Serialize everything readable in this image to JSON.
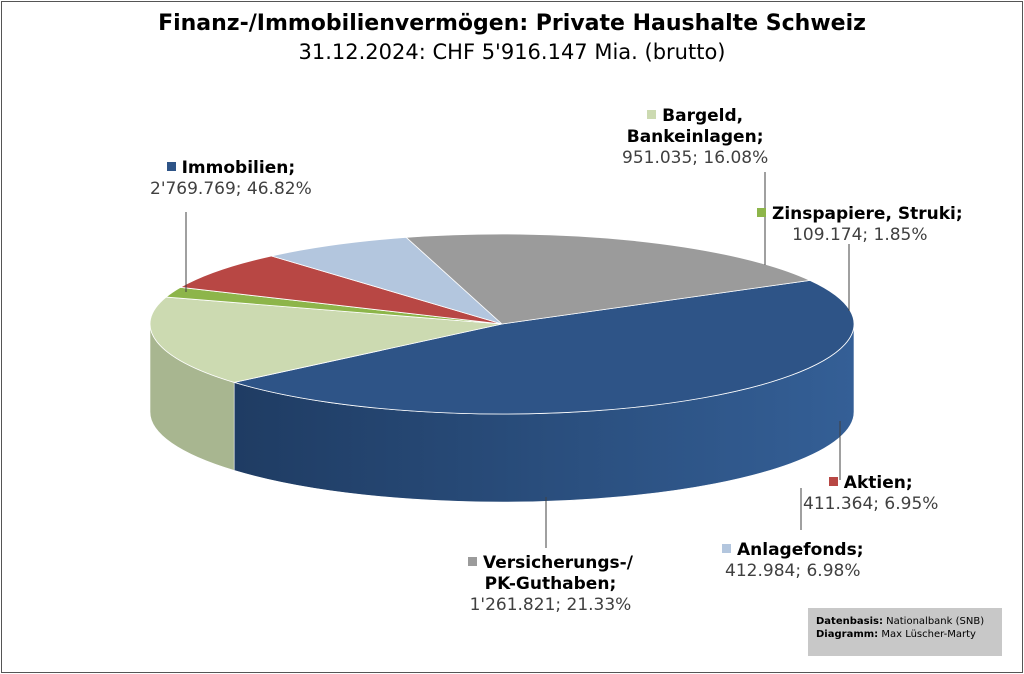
{
  "chart_data": {
    "type": "pie",
    "title": "Finanz-/Immobilienvermögen: Private Haushalte Schweiz",
    "subtitle": "31.12.2024: CHF 5'916.147 Mia. (brutto)",
    "slices": [
      {
        "name_line1": "Immobilien;",
        "name_line2": "",
        "value": 2769.769,
        "value_label": "2'769.769; 46.82%",
        "percent": 46.82,
        "color": "#2e5487",
        "side_color": "#284a78"
      },
      {
        "name_line1": "Bargeld,",
        "name_line2": "Bankeinlagen;",
        "value": 951.035,
        "value_label": "951.035; 16.08%",
        "percent": 16.08,
        "color": "#ccdab1",
        "side_color": "#a8b690"
      },
      {
        "name_line1": "Zinspapiere, Struki;",
        "name_line2": "",
        "value": 109.174,
        "value_label": "109.174; 1.85%",
        "percent": 1.85,
        "color": "#8db54a",
        "side_color": "#5f7e2c"
      },
      {
        "name_line1": "Aktien;",
        "name_line2": "",
        "value": 411.364,
        "value_label": "411.364; 6.95%",
        "percent": 6.95,
        "color": "#b84744",
        "side_color": "#4a1a18"
      },
      {
        "name_line1": "Anlagefonds;",
        "name_line2": "",
        "value": 412.984,
        "value_label": "412.984; 6.98%",
        "percent": 6.98,
        "color": "#b3c6de",
        "side_color": "#4d5560"
      },
      {
        "name_line1": "Versicherungs-/",
        "name_line2": "PK-Guthaben;",
        "value": 1261.821,
        "value_label": "1'261.821; 21.33%",
        "percent": 21.33,
        "color": "#9b9b9b",
        "side_color": "#6a6a6a"
      }
    ],
    "legend": "none",
    "style": "3d-perspective"
  },
  "source_box": {
    "line1_key": "Datenbasis:",
    "line1_value": "Nationalbank (SNB)",
    "line2_key": "Diagramm:",
    "line2_value": "Max Lüscher-Marty"
  }
}
